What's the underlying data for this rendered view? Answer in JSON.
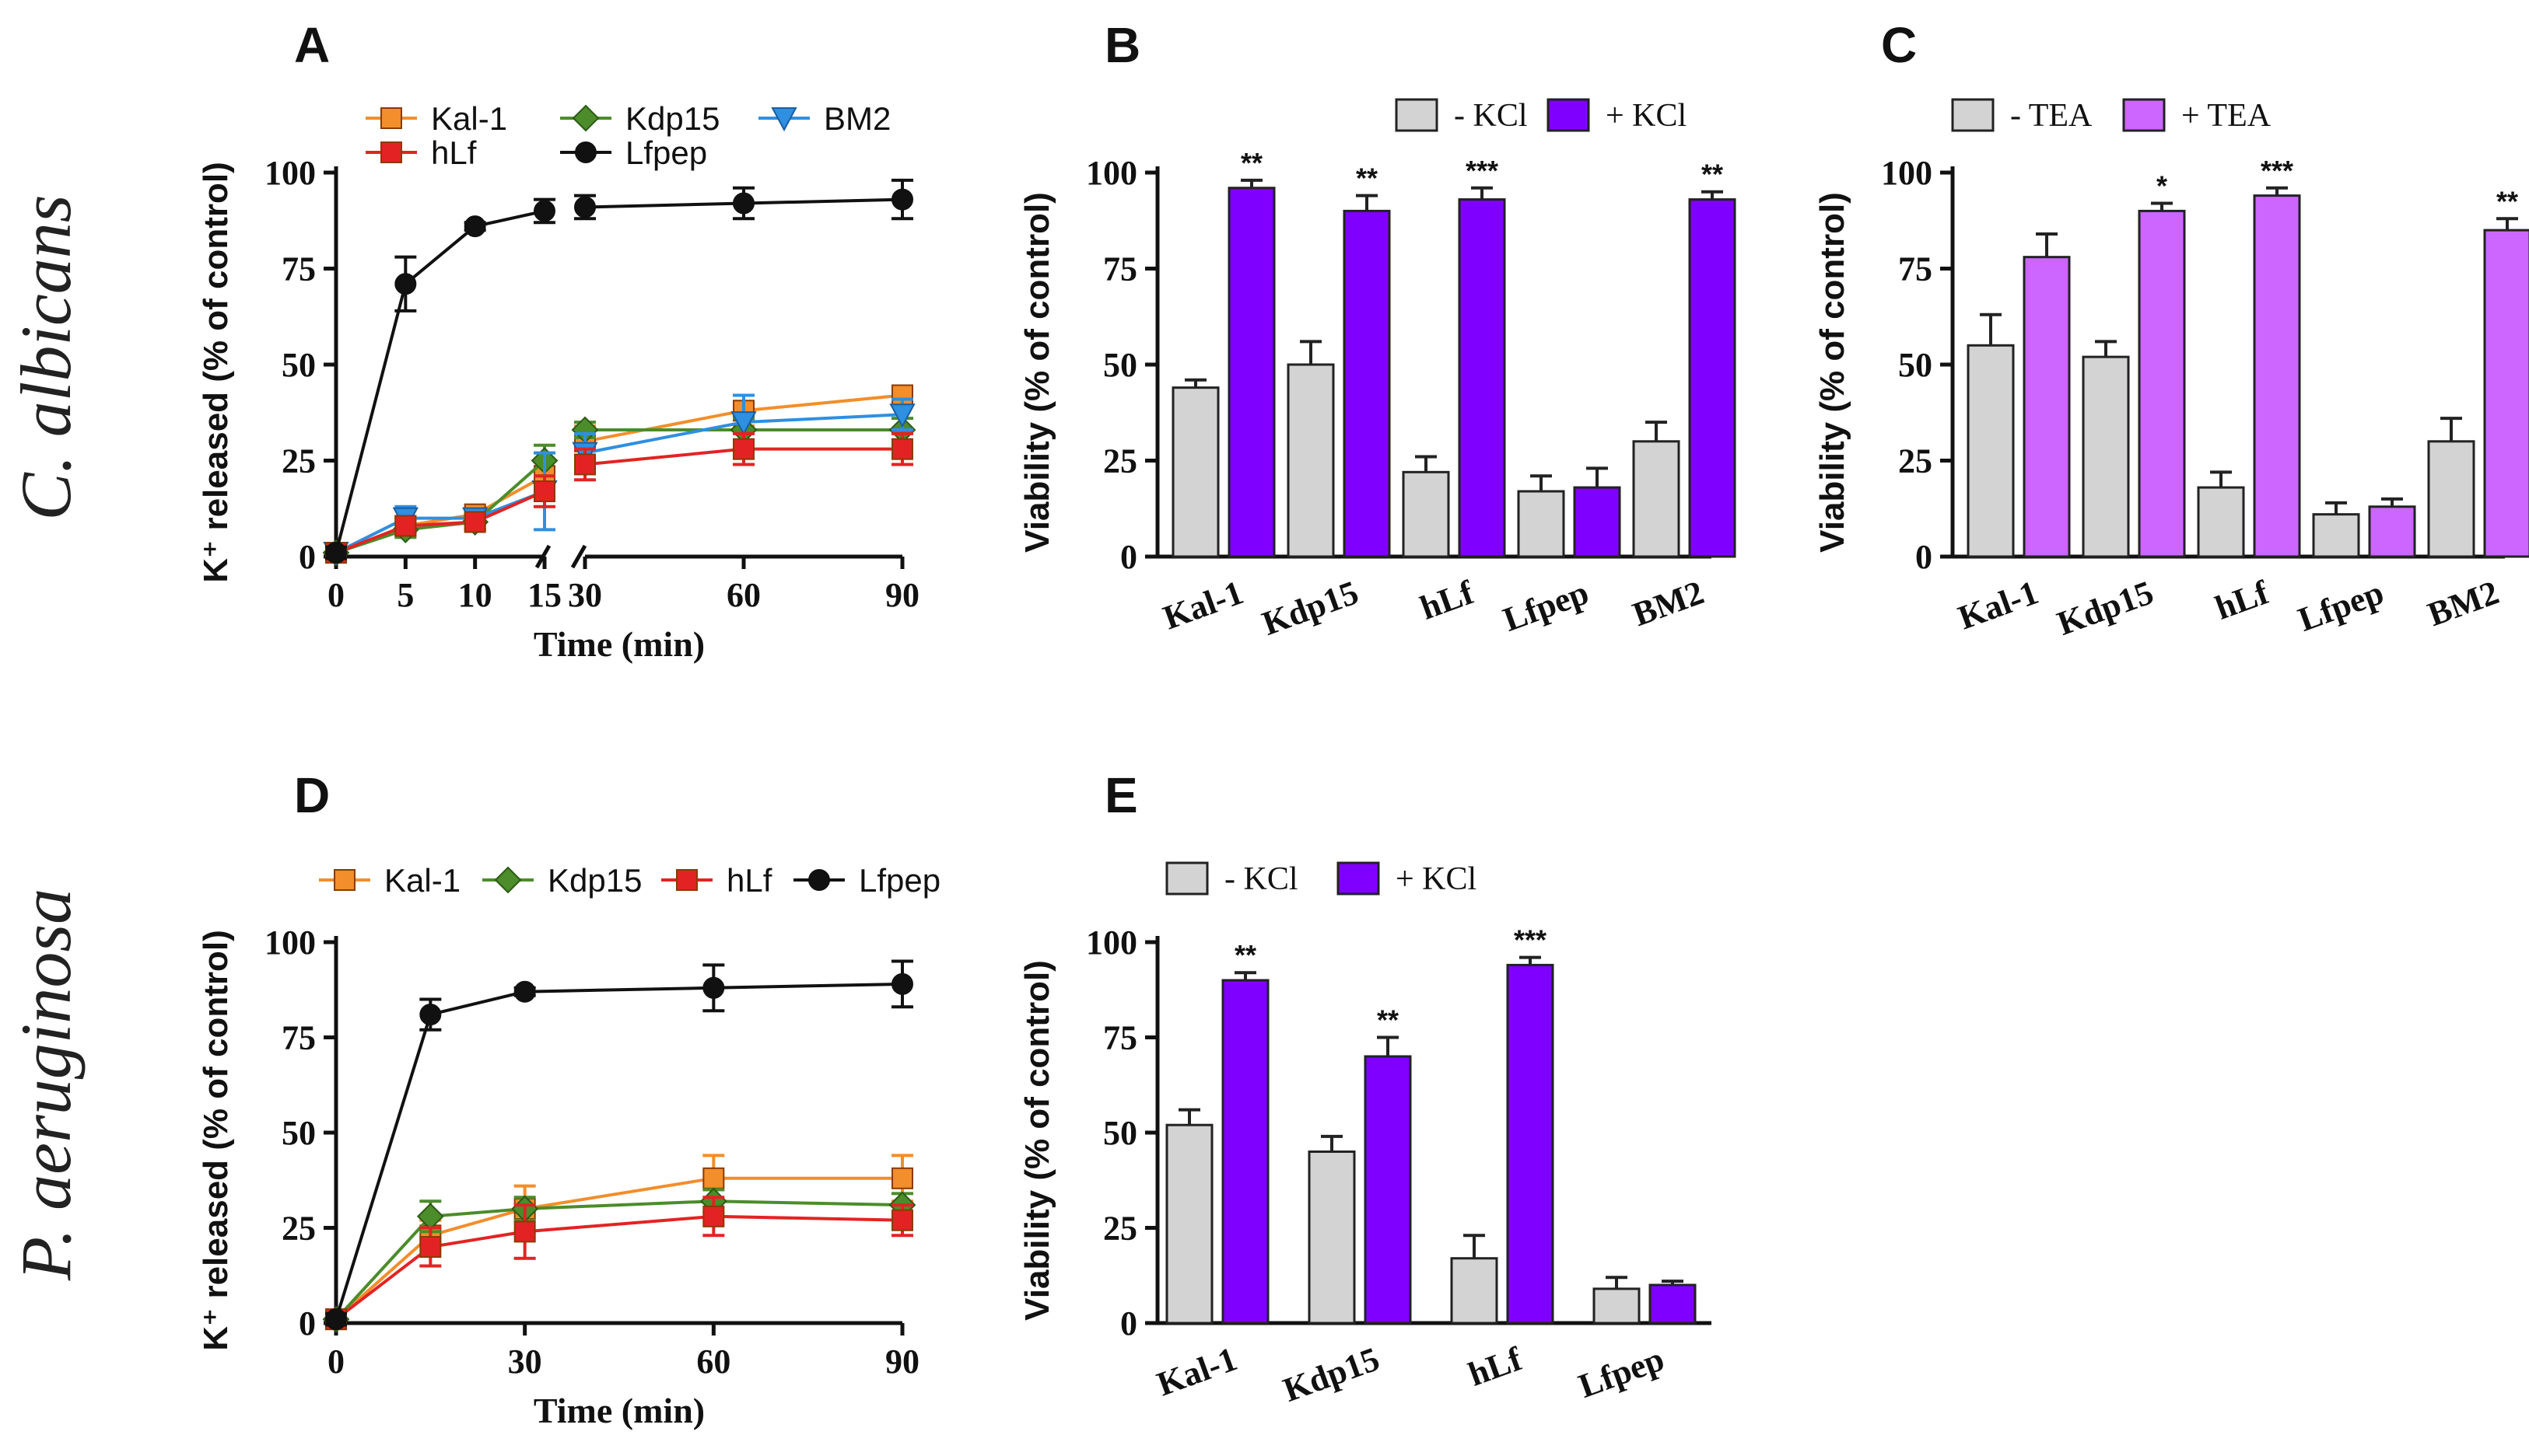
{
  "figure": {
    "row_labels": {
      "top": "C. albicans",
      "bottom": "P. aeruginosa"
    }
  },
  "chart_data": [
    {
      "id": "A",
      "panel_label": "A",
      "type": "line",
      "xlabel": "Time (min)",
      "ylabel": "K⁺ released (% of control)",
      "ylim": [
        0,
        100
      ],
      "yticks": [
        0,
        25,
        50,
        75,
        100
      ],
      "axis_break": {
        "left": [
          0,
          15
        ],
        "right": [
          30,
          90
        ]
      },
      "xticks": [
        0,
        5,
        10,
        15,
        30,
        60,
        90
      ],
      "x": [
        0,
        5,
        10,
        15,
        30,
        60,
        90
      ],
      "series": [
        {
          "name": "Kal-1",
          "color": "#F28E2B",
          "marker": "square",
          "values": [
            1,
            8,
            11,
            21,
            30,
            38,
            42
          ],
          "err": [
            1.5,
            2,
            2,
            6,
            4,
            4,
            2
          ]
        },
        {
          "name": "Kdp15",
          "color": "#4C8C2B",
          "marker": "diamond",
          "values": [
            1,
            7,
            9,
            25,
            33,
            33,
            33
          ],
          "err": [
            1.5,
            2,
            2,
            4,
            2,
            3,
            3
          ]
        },
        {
          "name": "BM2",
          "color": "#2F8FE0",
          "marker": "triangle-down",
          "values": [
            1,
            10,
            10,
            17,
            27,
            35,
            37
          ],
          "err": [
            1.5,
            3,
            2,
            10,
            5,
            7,
            4
          ]
        },
        {
          "name": "hLf",
          "color": "#E32323",
          "marker": "square",
          "values": [
            1,
            8,
            9,
            17,
            24,
            28,
            28
          ],
          "err": [
            1.5,
            2,
            2,
            4,
            4,
            4,
            4
          ]
        },
        {
          "name": "Lfpep",
          "color": "#111111",
          "marker": "circle",
          "values": [
            1,
            71,
            86,
            90,
            91,
            92,
            93
          ],
          "err": [
            1.5,
            7,
            1,
            3,
            3,
            4,
            5
          ]
        }
      ],
      "legend_order": [
        "Kal-1",
        "Kdp15",
        "BM2",
        "hLf",
        "Lfpep"
      ]
    },
    {
      "id": "B",
      "panel_label": "B",
      "type": "bar",
      "ylabel": "Viability (% of control)",
      "ylim": [
        0,
        100
      ],
      "yticks": [
        0,
        25,
        50,
        75,
        100
      ],
      "categories": [
        "Kal-1",
        "Kdp15",
        "hLf",
        "Lfpep",
        "BM2"
      ],
      "series": [
        {
          "name": "-  KCl",
          "color": "#D3D3D3",
          "values": [
            44,
            50,
            22,
            17,
            30
          ],
          "err": [
            2,
            6,
            4,
            4,
            5
          ]
        },
        {
          "name": "+ KCl",
          "color": "#8000FF",
          "values": [
            96,
            90,
            93,
            18,
            93
          ],
          "err": [
            2,
            4,
            3,
            5,
            2
          ]
        }
      ],
      "significance": [
        "**",
        "**",
        "***",
        "",
        "**"
      ]
    },
    {
      "id": "C",
      "panel_label": "C",
      "type": "bar",
      "ylabel": "Viability (% of control)",
      "ylim": [
        0,
        100
      ],
      "yticks": [
        0,
        25,
        50,
        75,
        100
      ],
      "categories": [
        "Kal-1",
        "Kdp15",
        "hLf",
        "Lfpep",
        "BM2"
      ],
      "series": [
        {
          "name": "-  TEA",
          "color": "#D3D3D3",
          "values": [
            55,
            52,
            18,
            11,
            30
          ],
          "err": [
            8,
            4,
            4,
            3,
            6
          ]
        },
        {
          "name": "+ TEA",
          "color": "#CC66FF",
          "values": [
            78,
            90,
            94,
            13,
            85
          ],
          "err": [
            6,
            2,
            2,
            2,
            3
          ]
        }
      ],
      "significance": [
        "",
        "*",
        "***",
        "",
        "**"
      ]
    },
    {
      "id": "D",
      "panel_label": "D",
      "type": "line",
      "xlabel": "Time (min)",
      "ylabel": "K⁺ released (% of control)",
      "ylim": [
        0,
        100
      ],
      "yticks": [
        0,
        25,
        50,
        75,
        100
      ],
      "xlim": [
        0,
        90
      ],
      "xticks": [
        0,
        30,
        60,
        90
      ],
      "x": [
        0,
        15,
        30,
        60,
        90
      ],
      "series": [
        {
          "name": "Kal-1",
          "color": "#F28E2B",
          "marker": "square",
          "values": [
            1,
            23,
            30,
            38,
            38
          ],
          "err": [
            1.5,
            4,
            6,
            6,
            6
          ]
        },
        {
          "name": "Kdp15",
          "color": "#4C8C2B",
          "marker": "diamond",
          "values": [
            1,
            28,
            30,
            32,
            31
          ],
          "err": [
            1.5,
            4,
            3,
            3,
            3
          ]
        },
        {
          "name": "hLf",
          "color": "#E32323",
          "marker": "square",
          "values": [
            1,
            20,
            24,
            28,
            27
          ],
          "err": [
            1.5,
            5,
            7,
            5,
            4
          ]
        },
        {
          "name": "Lfpep",
          "color": "#111111",
          "marker": "circle",
          "values": [
            1,
            81,
            87,
            88,
            89
          ],
          "err": [
            1.5,
            4,
            1,
            6,
            6
          ]
        }
      ],
      "legend_order": [
        "Kal-1",
        "Kdp15",
        "hLf",
        "Lfpep"
      ]
    },
    {
      "id": "E",
      "panel_label": "E",
      "type": "bar",
      "ylabel": "Viability (% of control)",
      "ylim": [
        0,
        100
      ],
      "yticks": [
        0,
        25,
        50,
        75,
        100
      ],
      "categories": [
        "Kal-1",
        "Kdp15",
        "hLf",
        "Lfpep"
      ],
      "series": [
        {
          "name": "-  KCl",
          "color": "#D3D3D3",
          "values": [
            52,
            45,
            17,
            9
          ],
          "err": [
            4,
            4,
            6,
            3
          ]
        },
        {
          "name": "+ KCl",
          "color": "#8000FF",
          "values": [
            90,
            70,
            94,
            10
          ],
          "err": [
            2,
            5,
            2,
            1
          ]
        }
      ],
      "significance": [
        "**",
        "**",
        "***",
        ""
      ]
    }
  ]
}
